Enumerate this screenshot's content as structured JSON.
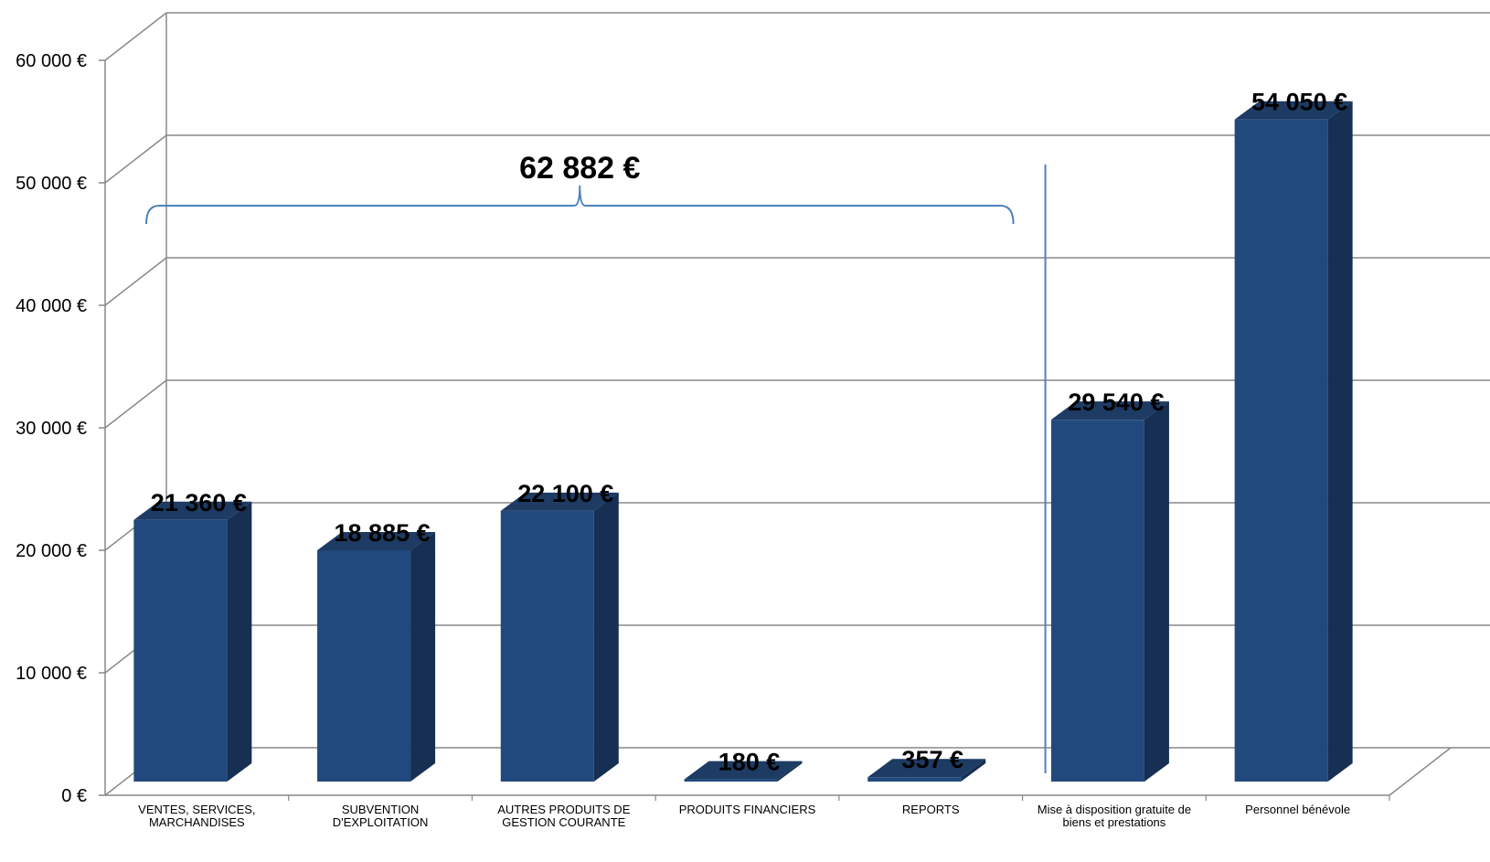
{
  "chart_data": {
    "type": "bar",
    "categories": [
      [
        "VENTES, SERVICES,",
        "MARCHANDISES"
      ],
      [
        "SUBVENTION",
        "D'EXPLOITATION"
      ],
      [
        "AUTRES PRODUITS DE",
        "GESTION COURANTE"
      ],
      [
        "PRODUITS FINANCIERS"
      ],
      [
        "REPORTS"
      ],
      [
        "Mise à disposition gratuite de",
        "biens et prestations"
      ],
      [
        "Personnel bénévole"
      ]
    ],
    "values": [
      21360,
      18885,
      22100,
      180,
      357,
      29540,
      54050
    ],
    "data_labels": [
      "21 360 €",
      "18 885 €",
      "22 100 €",
      "180 €",
      "357 €",
      "29 540 €",
      "54 050 €"
    ],
    "ylim": [
      0,
      60000
    ],
    "yticks": [
      0,
      10000,
      20000,
      30000,
      40000,
      50000,
      60000
    ],
    "ytick_labels": [
      "0 €",
      "10 000 €",
      "20 000 €",
      "30 000 €",
      "40 000 €",
      "50 000 €",
      "60 000 €"
    ],
    "grid": true,
    "style": "3d-column",
    "colors": {
      "bar_front": "#21497d",
      "bar_side": "#172f52",
      "bar_top": "#1d3b63",
      "grid": "#888888",
      "brace": "#4f81bd"
    },
    "group_total": {
      "label": "62 882 €",
      "spans_categories": [
        0,
        4
      ]
    },
    "separator_after_category": 4
  }
}
